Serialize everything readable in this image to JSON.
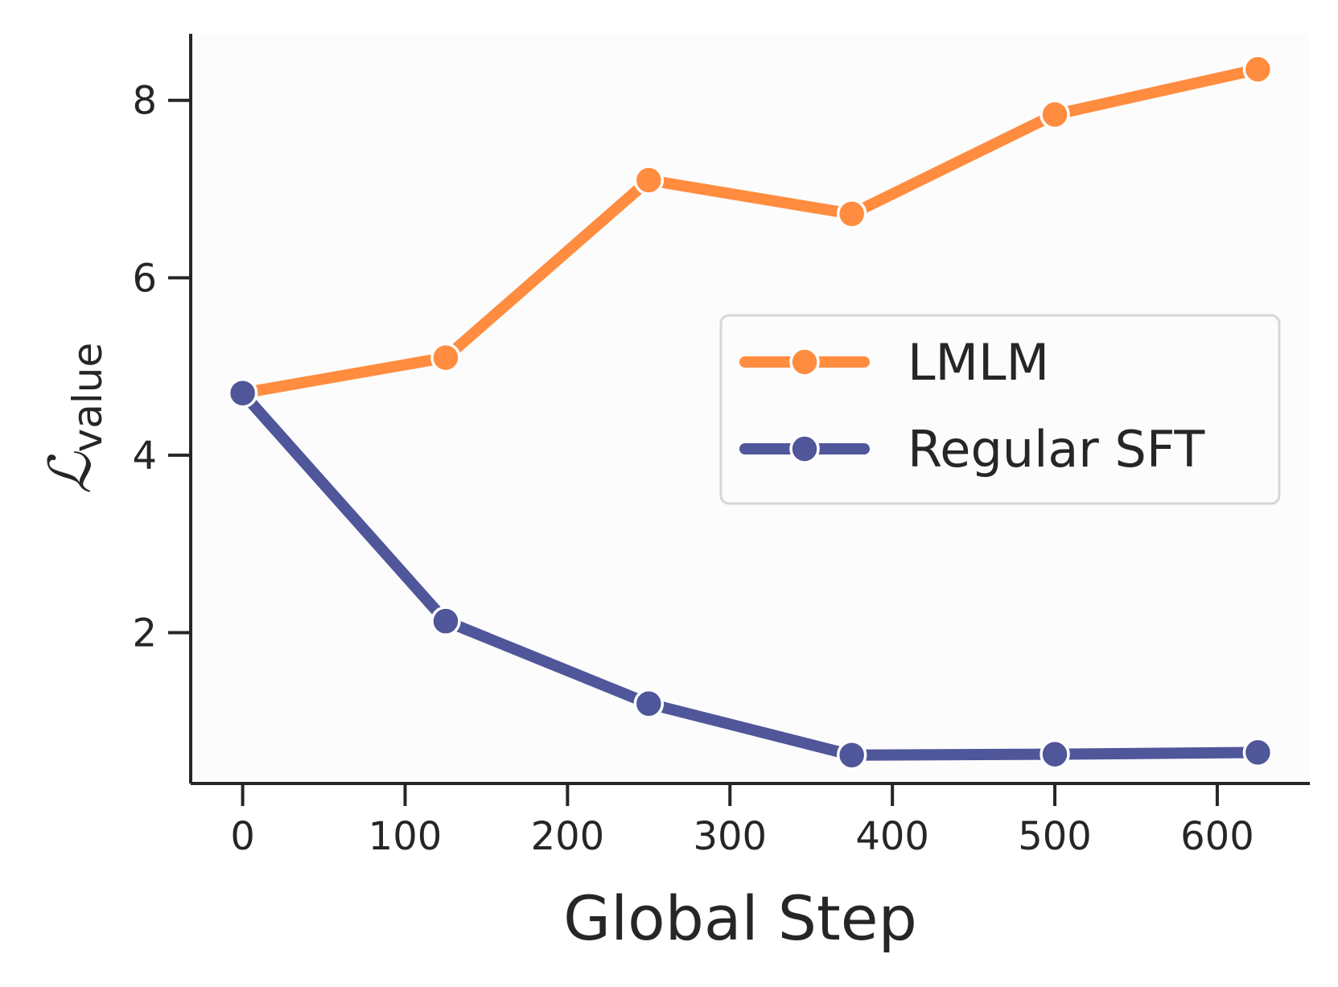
{
  "chart_data": {
    "type": "line",
    "title": "",
    "xlabel": "Global Step",
    "ylabel_main": "ℒ",
    "ylabel_sub": "value",
    "xlim": [
      -32,
      657
    ],
    "ylim": [
      0.3,
      8.75
    ],
    "xticks": [
      0,
      100,
      200,
      300,
      400,
      500,
      600
    ],
    "yticks": [
      2,
      4,
      6,
      8
    ],
    "grid": false,
    "legend_position": "center-right",
    "series": [
      {
        "name": "LMLM",
        "color": "#ff8c3f",
        "x": [
          0,
          125,
          250,
          375,
          500,
          625
        ],
        "y": [
          4.7,
          5.1,
          7.1,
          6.72,
          7.84,
          8.35
        ]
      },
      {
        "name": "Regular SFT",
        "color": "#4f569a",
        "x": [
          0,
          125,
          250,
          375,
          500,
          625
        ],
        "y": [
          4.7,
          2.13,
          1.2,
          0.62,
          0.63,
          0.65
        ]
      }
    ]
  }
}
